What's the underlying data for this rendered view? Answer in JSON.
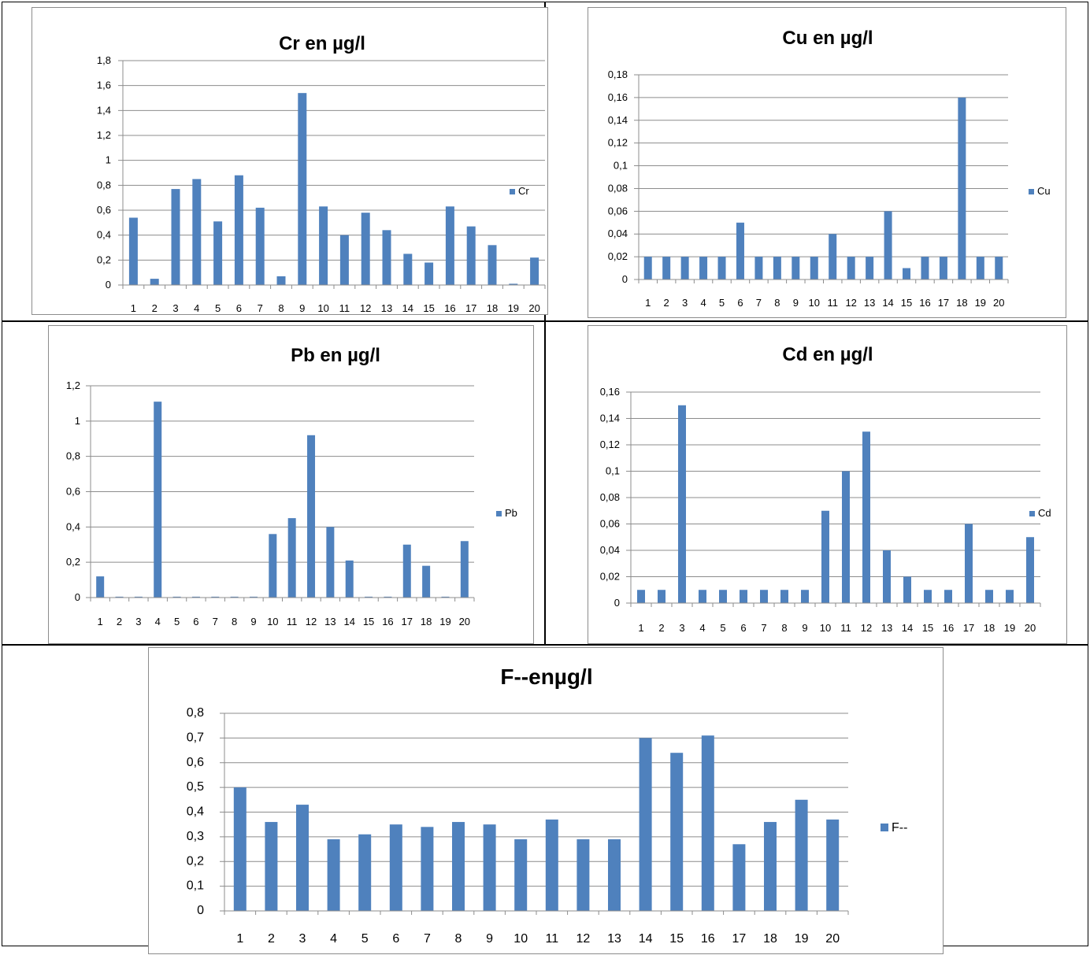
{
  "colors": {
    "bar": "#4f81bd",
    "grid": "#8c8c8c",
    "frame": "#8c8c8c",
    "cell_border": "#000000"
  },
  "chart_data": [
    {
      "type": "bar",
      "title": "Cr en µg/l",
      "categories": [
        "1",
        "2",
        "3",
        "4",
        "5",
        "6",
        "7",
        "8",
        "9",
        "10",
        "11",
        "12",
        "13",
        "14",
        "15",
        "16",
        "17",
        "18",
        "19",
        "20"
      ],
      "series": [
        {
          "name": "Cr",
          "values": [
            0.54,
            0.05,
            0.77,
            0.85,
            0.51,
            0.88,
            0.62,
            0.07,
            1.54,
            0.63,
            0.4,
            0.58,
            0.44,
            0.25,
            0.18,
            0.63,
            0.47,
            0.32,
            0.01,
            0.22
          ]
        }
      ],
      "yticks": [
        "0",
        "0,2",
        "0,4",
        "0,6",
        "0,8",
        "1",
        "1,2",
        "1,4",
        "1,6",
        "1,8"
      ],
      "ylim": [
        0,
        1.8
      ],
      "ystep": 0.2,
      "grid": true,
      "legend": "right"
    },
    {
      "type": "bar",
      "title": "Cu en µg/l",
      "categories": [
        "1",
        "2",
        "3",
        "4",
        "5",
        "6",
        "7",
        "8",
        "9",
        "10",
        "11",
        "12",
        "13",
        "14",
        "15",
        "16",
        "17",
        "18",
        "19",
        "20"
      ],
      "series": [
        {
          "name": "Cu",
          "values": [
            0.02,
            0.02,
            0.02,
            0.02,
            0.02,
            0.05,
            0.02,
            0.02,
            0.02,
            0.02,
            0.04,
            0.02,
            0.02,
            0.06,
            0.01,
            0.02,
            0.02,
            0.16,
            0.02,
            0.02
          ]
        }
      ],
      "yticks": [
        "0",
        "0,02",
        "0,04",
        "0,06",
        "0,08",
        "0,1",
        "0,12",
        "0,14",
        "0,16",
        "0,18"
      ],
      "ylim": [
        0,
        0.18
      ],
      "ystep": 0.02,
      "grid": true,
      "legend": "right"
    },
    {
      "type": "bar",
      "title": "Pb en µg/l",
      "categories": [
        "1",
        "2",
        "3",
        "4",
        "5",
        "6",
        "7",
        "8",
        "9",
        "10",
        "11",
        "12",
        "13",
        "14",
        "15",
        "16",
        "17",
        "18",
        "19",
        "20"
      ],
      "series": [
        {
          "name": "Pb",
          "values": [
            0.12,
            0.005,
            0.005,
            1.11,
            0.005,
            0.005,
            0.005,
            0.005,
            0.005,
            0.36,
            0.45,
            0.92,
            0.4,
            0.21,
            0.005,
            0.005,
            0.3,
            0.18,
            0.005,
            0.32
          ]
        }
      ],
      "yticks": [
        "0",
        "0,2",
        "0,4",
        "0,6",
        "0,8",
        "1",
        "1,2"
      ],
      "ylim": [
        0,
        1.2
      ],
      "ystep": 0.2,
      "grid": true,
      "legend": "right"
    },
    {
      "type": "bar",
      "title": "Cd en µg/l",
      "categories": [
        "1",
        "2",
        "3",
        "4",
        "5",
        "6",
        "7",
        "8",
        "9",
        "10",
        "11",
        "12",
        "13",
        "14",
        "15",
        "16",
        "17",
        "18",
        "19",
        "20"
      ],
      "series": [
        {
          "name": "Cd",
          "values": [
            0.01,
            0.01,
            0.15,
            0.01,
            0.01,
            0.01,
            0.01,
            0.01,
            0.01,
            0.07,
            0.1,
            0.13,
            0.04,
            0.02,
            0.01,
            0.01,
            0.06,
            0.01,
            0.01,
            0.05
          ]
        }
      ],
      "yticks": [
        "0",
        "0,02",
        "0,04",
        "0,06",
        "0,08",
        "0,1",
        "0,12",
        "0,14",
        "0,16"
      ],
      "ylim": [
        0,
        0.16
      ],
      "ystep": 0.02,
      "grid": true,
      "legend": "right"
    },
    {
      "type": "bar",
      "title": "F--enµg/l",
      "categories": [
        "1",
        "2",
        "3",
        "4",
        "5",
        "6",
        "7",
        "8",
        "9",
        "10",
        "11",
        "12",
        "13",
        "14",
        "15",
        "16",
        "17",
        "18",
        "19",
        "20"
      ],
      "series": [
        {
          "name": "F--",
          "values": [
            0.5,
            0.36,
            0.43,
            0.29,
            0.31,
            0.35,
            0.34,
            0.36,
            0.35,
            0.29,
            0.37,
            0.29,
            0.29,
            0.7,
            0.64,
            0.71,
            0.27,
            0.36,
            0.45,
            0.37
          ]
        }
      ],
      "yticks": [
        "0",
        "0,1",
        "0,2",
        "0,3",
        "0,4",
        "0,5",
        "0,6",
        "0,7",
        "0,8"
      ],
      "ylim": [
        0,
        0.8
      ],
      "ystep": 0.1,
      "grid": true,
      "legend": "right"
    }
  ]
}
